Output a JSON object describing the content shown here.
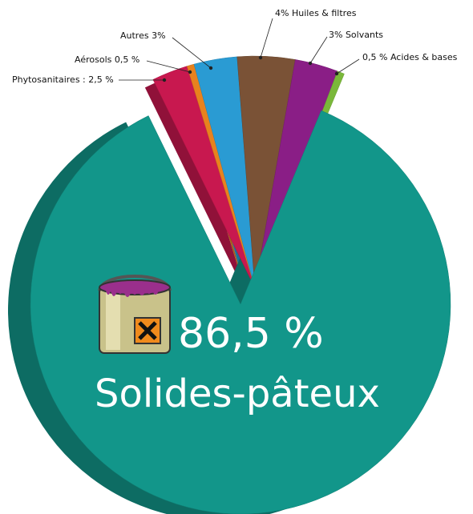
{
  "chart_data": {
    "type": "pie",
    "slices": [
      {
        "label": "Phytosanitaires : 2,5 %",
        "value": 2.5,
        "color": "#c8184f"
      },
      {
        "label": "Aérosols 0,5 %",
        "value": 0.5,
        "color": "#e8821e"
      },
      {
        "label": "Autres 3%",
        "value": 3,
        "color": "#2a9bd3"
      },
      {
        "label": "4% Huiles & filtres",
        "value": 4,
        "color": "#7a5236"
      },
      {
        "label": "3% Solvants",
        "value": 3,
        "color": "#8a1e86"
      },
      {
        "label": "0,5 % Acides & bases",
        "value": 0.5,
        "color": "#7ab83a"
      },
      {
        "label": "Solides-pâteux",
        "value_label": "86,5 %",
        "value": 86.5,
        "color": "#12968a"
      }
    ]
  }
}
